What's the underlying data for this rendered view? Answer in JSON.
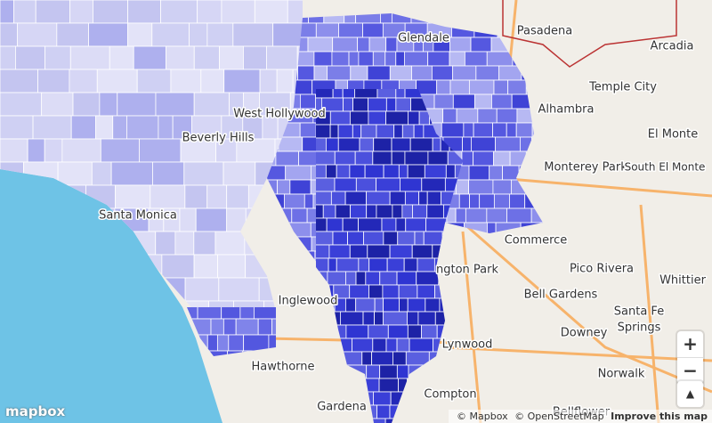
{
  "places": [
    "Glendale",
    "Pasadena",
    "Arcadia",
    "Temple City",
    "West Hollywood",
    "Alhambra",
    "El Monte",
    "Beverly Hills",
    "Monterey Park",
    "South El Monte",
    "Santa Monica",
    "Commerce",
    "ngton Park",
    "Pico Rivera",
    "Whittier",
    "Inglewood",
    "Bell Gardens",
    "Santa Fe",
    "Springs",
    "Downey",
    "Lynwood",
    "Hawthorne",
    "Norwalk",
    "Compton",
    "Gardena",
    "Bellflower"
  ],
  "controls": [
    "+",
    "−",
    "▲"
  ],
  "logo": "mapbox",
  "attribution": [
    "© Mapbox",
    "© OpenStreetMap",
    "Improve this map"
  ]
}
